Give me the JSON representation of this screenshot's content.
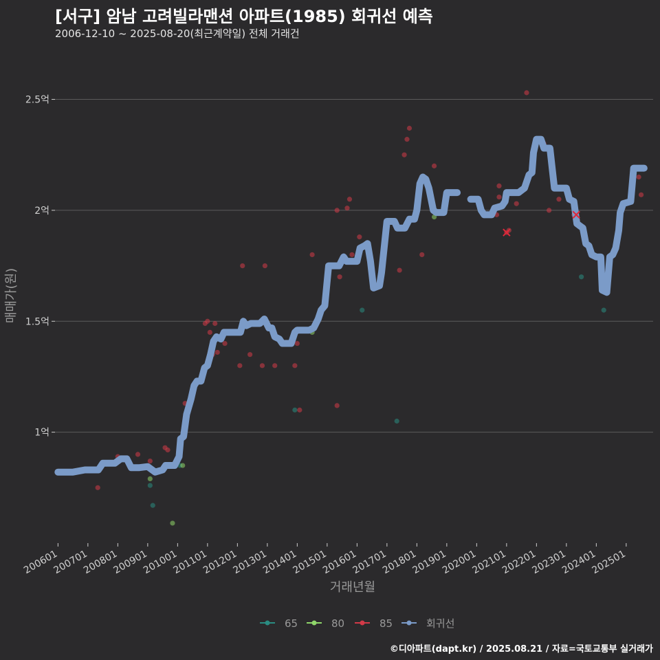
{
  "chart_data": {
    "type": "line",
    "title": "[서구] 암남 고려빌라맨션 아파트(1985) 회귀선 예측",
    "subtitle": "2006-12-10 ~ 2025-08-20(최근계약일) 전체 거래건",
    "xlabel": "거래년월",
    "ylabel": "매매가(원)",
    "caption": "©디아파트(dapt.kr) / 2025.08.21 / 자료=국토교통부 실거래가",
    "x_ticks": [
      "200601",
      "200701",
      "200801",
      "200901",
      "201001",
      "201101",
      "201201",
      "201301",
      "201401",
      "201501",
      "201601",
      "201701",
      "201801",
      "201901",
      "202001",
      "202101",
      "202201",
      "202301",
      "202401",
      "202501"
    ],
    "y_ticks": [
      {
        "value": 1.0,
        "label": "1억"
      },
      {
        "value": 1.5,
        "label": "1.5억"
      },
      {
        "value": 2.0,
        "label": "2억"
      },
      {
        "value": 2.5,
        "label": "2.5억"
      }
    ],
    "ylim": [
      0.5,
      2.7
    ],
    "xlim": [
      2005.9,
      2025.9
    ],
    "grid": "horizontal",
    "legend_position": "bottom",
    "colors": {
      "s65": "#2a8c82",
      "s80": "#8fd66a",
      "s85": "#d33a48",
      "trend": "#7b9bc8",
      "grid": "#5c5c5c"
    },
    "legend": [
      {
        "key": "s65",
        "label": "65"
      },
      {
        "key": "s80",
        "label": "80"
      },
      {
        "key": "s85",
        "label": "85"
      },
      {
        "key": "trend",
        "label": "회귀선"
      }
    ],
    "scatter": {
      "s65": [
        [
          2009.08,
          0.76
        ],
        [
          2009.17,
          0.67
        ],
        [
          2010.08,
          0.85
        ],
        [
          2013.92,
          1.1
        ],
        [
          2016.17,
          1.55
        ],
        [
          2017.33,
          1.05
        ],
        [
          2023.5,
          1.7
        ],
        [
          2024.25,
          1.55
        ]
      ],
      "s80": [
        [
          2009.08,
          0.79
        ],
        [
          2009.83,
          0.59
        ],
        [
          2010.17,
          0.85
        ],
        [
          2014.5,
          1.45
        ],
        [
          2018.58,
          1.97
        ]
      ],
      "s85": [
        [
          2007.33,
          0.75
        ],
        [
          2008.0,
          0.89
        ],
        [
          2008.67,
          0.9
        ],
        [
          2009.08,
          0.87
        ],
        [
          2009.58,
          0.93
        ],
        [
          2009.67,
          0.92
        ],
        [
          2010.25,
          1.13
        ],
        [
          2010.92,
          1.49
        ],
        [
          2011.0,
          1.5
        ],
        [
          2011.08,
          1.45
        ],
        [
          2011.17,
          1.35
        ],
        [
          2011.25,
          1.49
        ],
        [
          2011.33,
          1.36
        ],
        [
          2011.58,
          1.4
        ],
        [
          2012.08,
          1.3
        ],
        [
          2012.17,
          1.75
        ],
        [
          2012.42,
          1.35
        ],
        [
          2012.83,
          1.3
        ],
        [
          2012.92,
          1.75
        ],
        [
          2013.25,
          1.3
        ],
        [
          2013.92,
          1.3
        ],
        [
          2014.0,
          1.4
        ],
        [
          2014.08,
          1.1
        ],
        [
          2014.5,
          1.8
        ],
        [
          2015.33,
          2.0
        ],
        [
          2015.33,
          1.12
        ],
        [
          2015.42,
          1.7
        ],
        [
          2015.67,
          2.01
        ],
        [
          2015.75,
          2.05
        ],
        [
          2015.83,
          1.8
        ],
        [
          2016.08,
          1.88
        ],
        [
          2017.42,
          1.73
        ],
        [
          2017.58,
          2.25
        ],
        [
          2017.67,
          2.32
        ],
        [
          2017.75,
          2.37
        ],
        [
          2018.17,
          1.8
        ],
        [
          2018.58,
          2.2
        ],
        [
          2020.67,
          1.98
        ],
        [
          2020.75,
          2.11
        ],
        [
          2020.75,
          2.06
        ],
        [
          2021.0,
          1.9
        ],
        [
          2021.08,
          1.91
        ],
        [
          2021.33,
          2.03
        ],
        [
          2021.67,
          2.53
        ],
        [
          2022.25,
          2.3
        ],
        [
          2022.42,
          2.0
        ],
        [
          2022.75,
          2.05
        ],
        [
          2023.25,
          1.98
        ],
        [
          2025.42,
          2.15
        ],
        [
          2025.5,
          2.07
        ]
      ]
    },
    "markers_x": [
      [
        2021.0,
        1.9
      ],
      [
        2023.33,
        1.98
      ]
    ],
    "trend": [
      [
        [
          2006.0,
          0.82
        ],
        [
          2006.5,
          0.82
        ],
        [
          2006.9,
          0.83
        ],
        [
          2007.35,
          0.83
        ],
        [
          2007.5,
          0.86
        ],
        [
          2007.9,
          0.86
        ],
        [
          2008.1,
          0.88
        ],
        [
          2008.3,
          0.88
        ],
        [
          2008.45,
          0.84
        ],
        [
          2008.7,
          0.84
        ],
        [
          2009.0,
          0.845
        ],
        [
          2009.25,
          0.82
        ],
        [
          2009.5,
          0.83
        ],
        [
          2009.6,
          0.85
        ],
        [
          2009.9,
          0.85
        ],
        [
          2010.05,
          0.89
        ],
        [
          2010.1,
          0.97
        ],
        [
          2010.2,
          0.98
        ],
        [
          2010.3,
          1.08
        ],
        [
          2010.45,
          1.15
        ],
        [
          2010.55,
          1.21
        ],
        [
          2010.65,
          1.23
        ],
        [
          2010.78,
          1.23
        ],
        [
          2010.9,
          1.29
        ],
        [
          2011.0,
          1.3
        ],
        [
          2011.1,
          1.35
        ],
        [
          2011.2,
          1.41
        ],
        [
          2011.3,
          1.43
        ],
        [
          2011.45,
          1.42
        ],
        [
          2011.55,
          1.45
        ],
        [
          2012.1,
          1.45
        ],
        [
          2012.2,
          1.5
        ],
        [
          2012.3,
          1.48
        ],
        [
          2012.45,
          1.49
        ],
        [
          2012.75,
          1.49
        ],
        [
          2012.9,
          1.51
        ],
        [
          2013.05,
          1.47
        ],
        [
          2013.15,
          1.47
        ],
        [
          2013.25,
          1.43
        ],
        [
          2013.4,
          1.42
        ],
        [
          2013.5,
          1.4
        ],
        [
          2013.8,
          1.4
        ],
        [
          2013.92,
          1.45
        ],
        [
          2014.0,
          1.46
        ],
        [
          2014.4,
          1.46
        ],
        [
          2014.55,
          1.47
        ],
        [
          2014.7,
          1.51
        ],
        [
          2014.8,
          1.55
        ],
        [
          2014.92,
          1.57
        ],
        [
          2015.05,
          1.75
        ],
        [
          2015.4,
          1.75
        ],
        [
          2015.55,
          1.79
        ],
        [
          2015.65,
          1.77
        ],
        [
          2016.0,
          1.77
        ],
        [
          2016.1,
          1.83
        ],
        [
          2016.25,
          1.84
        ],
        [
          2016.35,
          1.85
        ],
        [
          2016.45,
          1.77
        ],
        [
          2016.55,
          1.65
        ],
        [
          2016.75,
          1.66
        ],
        [
          2016.82,
          1.72
        ],
        [
          2016.92,
          1.85
        ],
        [
          2017.0,
          1.95
        ],
        [
          2017.25,
          1.95
        ],
        [
          2017.35,
          1.92
        ],
        [
          2017.6,
          1.92
        ],
        [
          2017.75,
          1.96
        ],
        [
          2017.92,
          1.96
        ],
        [
          2018.0,
          2.0
        ],
        [
          2018.1,
          2.12
        ],
        [
          2018.2,
          2.15
        ],
        [
          2018.3,
          2.14
        ],
        [
          2018.4,
          2.1
        ],
        [
          2018.55,
          2.0
        ],
        [
          2018.65,
          1.99
        ],
        [
          2018.9,
          1.99
        ],
        [
          2019.0,
          2.08
        ],
        [
          2019.35,
          2.08
        ]
      ],
      [
        [
          2019.8,
          2.05
        ],
        [
          2020.05,
          2.05
        ],
        [
          2020.15,
          2.0
        ],
        [
          2020.25,
          1.98
        ],
        [
          2020.5,
          1.98
        ],
        [
          2020.6,
          2.01
        ],
        [
          2020.85,
          2.02
        ],
        [
          2020.95,
          2.04
        ],
        [
          2021.0,
          2.08
        ],
        [
          2021.4,
          2.08
        ],
        [
          2021.6,
          2.1
        ],
        [
          2021.75,
          2.16
        ],
        [
          2021.85,
          2.17
        ],
        [
          2021.9,
          2.26
        ],
        [
          2022.0,
          2.32
        ],
        [
          2022.15,
          2.32
        ],
        [
          2022.25,
          2.28
        ],
        [
          2022.45,
          2.28
        ],
        [
          2022.6,
          2.1
        ],
        [
          2022.75,
          2.1
        ],
        [
          2023.0,
          2.1
        ],
        [
          2023.1,
          2.05
        ],
        [
          2023.25,
          2.04
        ],
        [
          2023.35,
          1.94
        ],
        [
          2023.45,
          1.93
        ],
        [
          2023.55,
          1.92
        ],
        [
          2023.65,
          1.85
        ],
        [
          2023.75,
          1.84
        ],
        [
          2023.85,
          1.8
        ],
        [
          2024.0,
          1.79
        ],
        [
          2024.15,
          1.79
        ],
        [
          2024.2,
          1.64
        ],
        [
          2024.35,
          1.63
        ],
        [
          2024.45,
          1.79
        ],
        [
          2024.55,
          1.8
        ],
        [
          2024.65,
          1.83
        ],
        [
          2024.75,
          1.91
        ],
        [
          2024.8,
          1.99
        ],
        [
          2024.9,
          2.03
        ],
        [
          2025.15,
          2.04
        ],
        [
          2025.25,
          2.19
        ],
        [
          2025.6,
          2.19
        ]
      ]
    ]
  }
}
